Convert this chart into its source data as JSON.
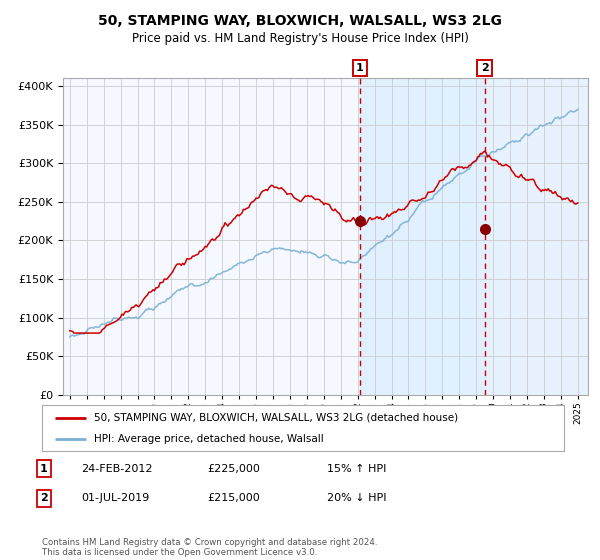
{
  "title": "50, STAMPING WAY, BLOXWICH, WALSALL, WS3 2LG",
  "subtitle": "Price paid vs. HM Land Registry's House Price Index (HPI)",
  "legend_line1": "50, STAMPING WAY, BLOXWICH, WALSALL, WS3 2LG (detached house)",
  "legend_line2": "HPI: Average price, detached house, Walsall",
  "annotation1_label": "1",
  "annotation1_date": "24-FEB-2012",
  "annotation1_price": "£225,000",
  "annotation1_hpi": "15% ↑ HPI",
  "annotation2_label": "2",
  "annotation2_date": "01-JUL-2019",
  "annotation2_price": "£215,000",
  "annotation2_hpi": "20% ↓ HPI",
  "footer": "Contains HM Land Registry data © Crown copyright and database right 2024.\nThis data is licensed under the Open Government Licence v3.0.",
  "hpi_color": "#7bafd4",
  "price_color": "#cc0000",
  "dot_color": "#880000",
  "vline_color": "#cc0000",
  "shade_color": "#ddeeff",
  "grid_color": "#cccccc",
  "bg_color": "#ffffff",
  "plot_bg": "#f5f8ff",
  "ylim": [
    0,
    410000
  ],
  "yticks": [
    0,
    50000,
    100000,
    150000,
    200000,
    250000,
    300000,
    350000,
    400000
  ],
  "sale1_year": 2012.14,
  "sale1_price": 225000,
  "sale2_year": 2019.5,
  "sale2_price": 215000
}
